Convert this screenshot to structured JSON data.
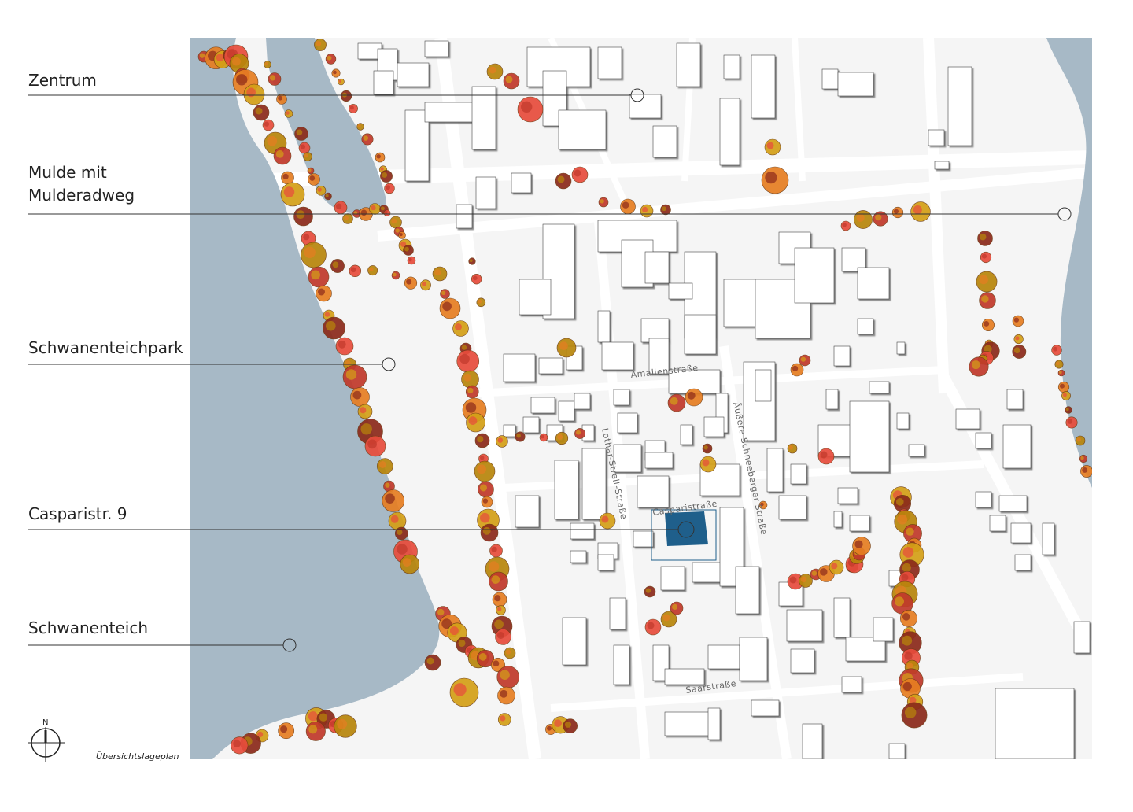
{
  "labels": [
    {
      "id": "zentrum",
      "text": "Zentrum"
    },
    {
      "id": "mulde",
      "text": "Mulde mit\nMulderadweg"
    },
    {
      "id": "park",
      "text": "Schwanenteichpark"
    },
    {
      "id": "casparistr",
      "text": "Casparistr. 9"
    },
    {
      "id": "schwanenteich",
      "text": "Schwanenteich"
    }
  ],
  "streets": {
    "amalienstrasse": "Amalienstraße",
    "lothar": "Lothar-Streit-Straße",
    "aeussere": "Äußere Schneeberger Straße",
    "casparistrasse": "Casparistraße",
    "saarstrasse": "Saarstraße"
  },
  "north_label": "N",
  "caption": "Übersichtslageplan",
  "colors": {
    "water": "#a7b9c6",
    "ground": "#f5f5f5",
    "road": "#ffffff",
    "building": "#ffffff",
    "highlight": "#1f5f8b",
    "tree_palette": [
      "#c0392b",
      "#e67e22",
      "#d4a017",
      "#8b2a1a",
      "#e74c3c",
      "#b8860b"
    ]
  }
}
